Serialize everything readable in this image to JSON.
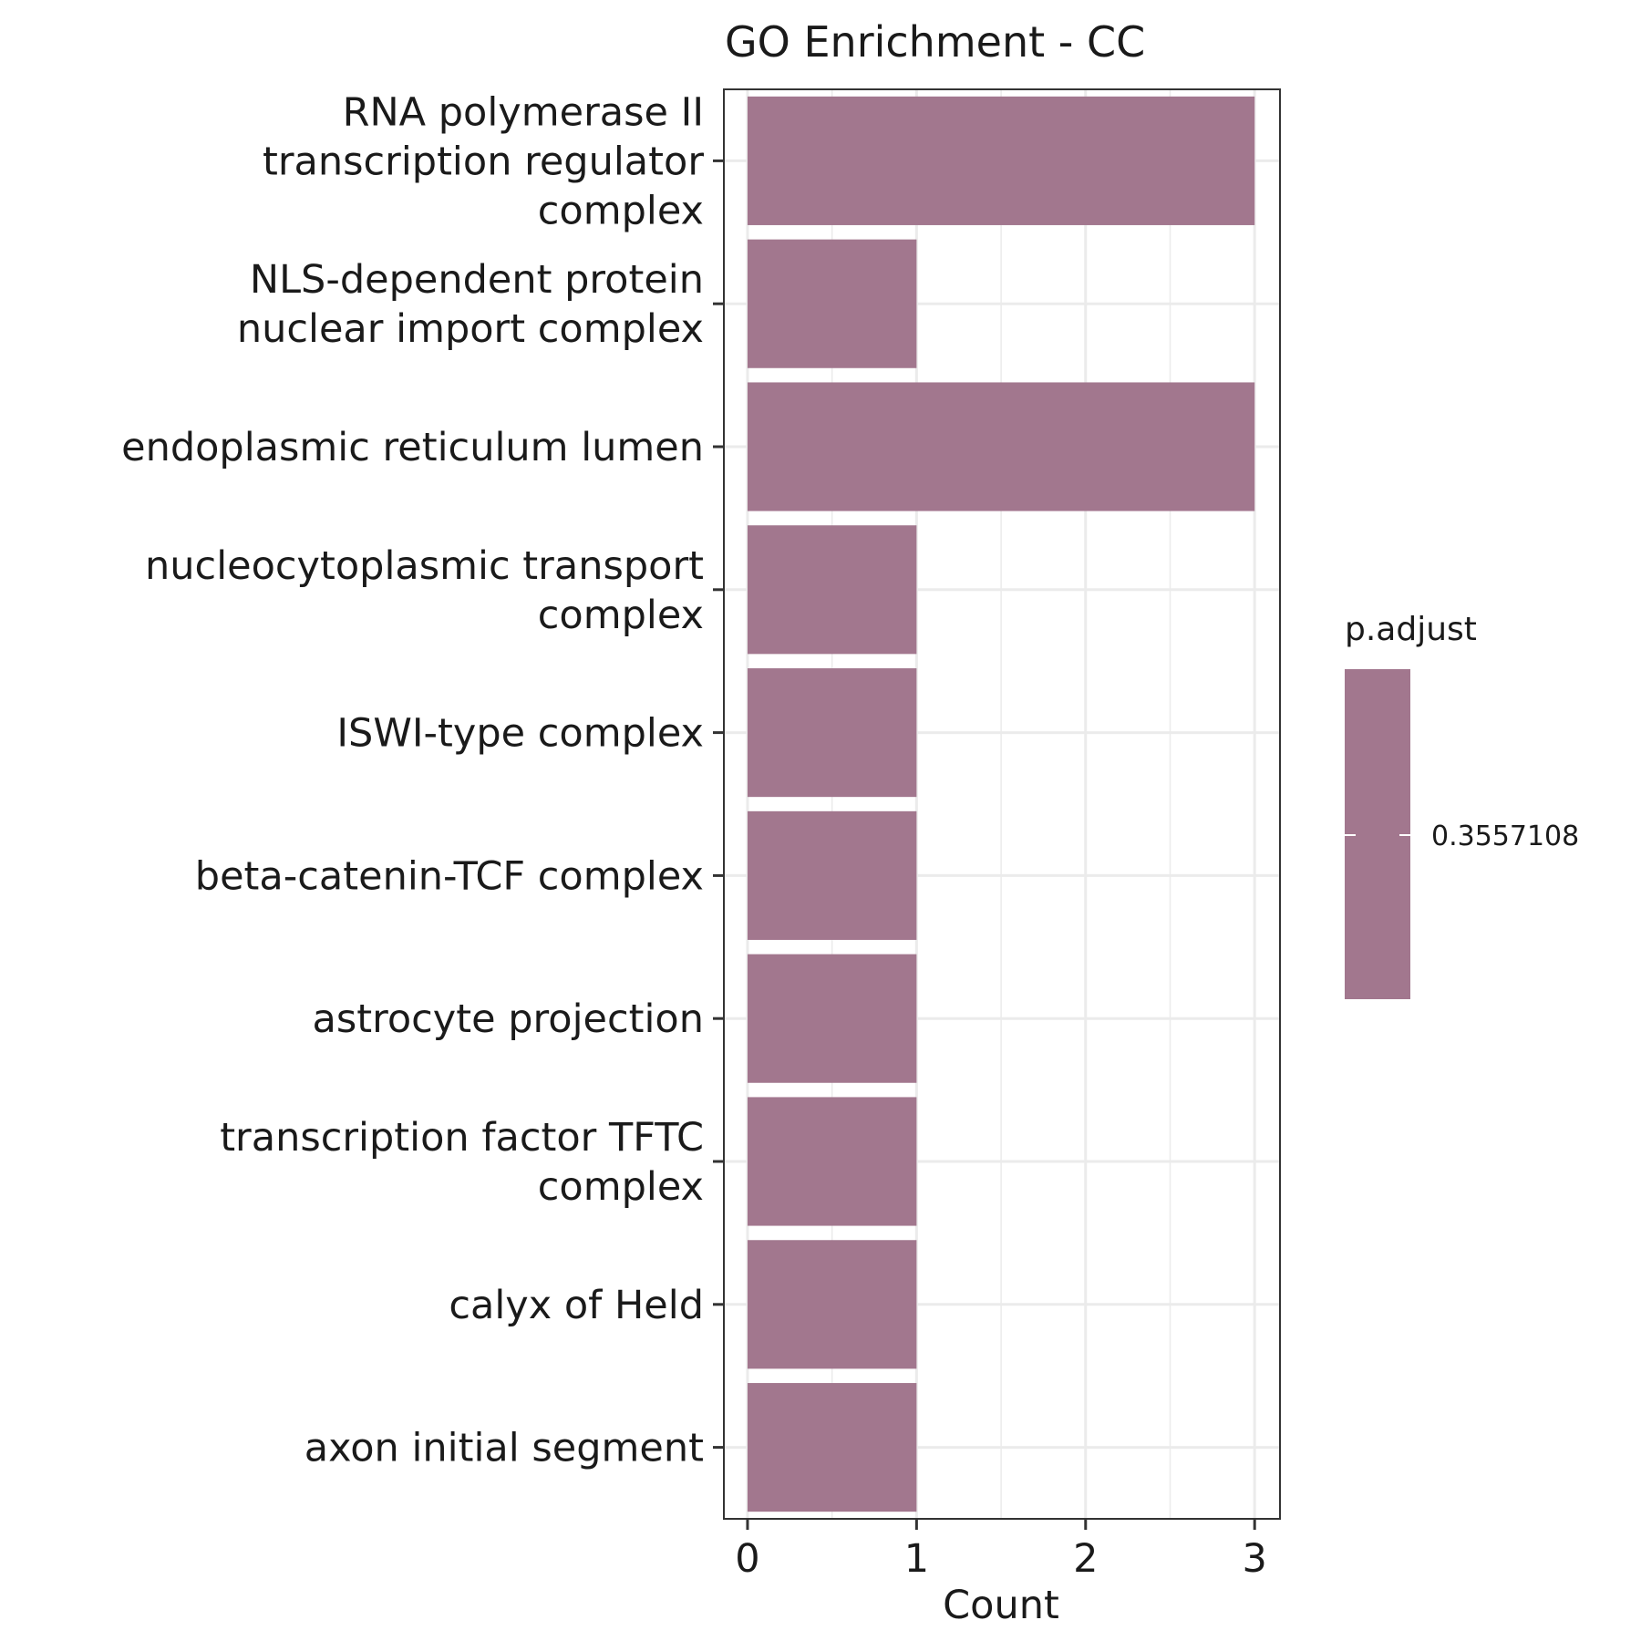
{
  "chart_data": {
    "type": "bar",
    "orientation": "horizontal",
    "title": "GO Enrichment - CC",
    "xlabel": "Count",
    "ylabel": "",
    "xlim": [
      -0.14,
      3.15
    ],
    "xticks": [
      0,
      1,
      2,
      3
    ],
    "grid": true,
    "bar_color": "#A2778E",
    "categories": [
      [
        "RNA polymerase II",
        "transcription regulator",
        "complex"
      ],
      [
        "NLS-dependent protein",
        "nuclear import complex"
      ],
      [
        "endoplasmic reticulum lumen"
      ],
      [
        "nucleocytoplasmic transport",
        "complex"
      ],
      [
        "ISWI-type complex"
      ],
      [
        "beta-catenin-TCF complex"
      ],
      [
        "astrocyte projection"
      ],
      [
        "transcription factor TFTC",
        "complex"
      ],
      [
        "calyx of Held"
      ],
      [
        "axon initial segment"
      ]
    ],
    "values": [
      3,
      1,
      3,
      1,
      1,
      1,
      1,
      1,
      1,
      1
    ],
    "legend": {
      "title": "p.adjust",
      "placement": "right",
      "labels": [
        "0.3557108"
      ]
    }
  }
}
